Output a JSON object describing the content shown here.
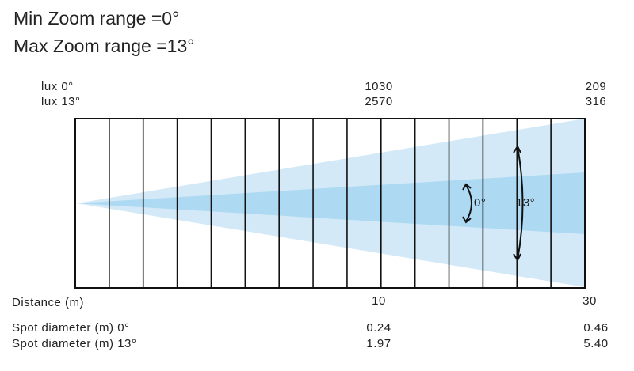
{
  "header": {
    "min_zoom": "Min Zoom range =0°",
    "max_zoom": "Max Zoom range =13°"
  },
  "lux": [
    {
      "label": "lux 0°",
      "values": [
        "1030",
        "209"
      ]
    },
    {
      "label": "lux 13°",
      "values": [
        "2570",
        "316"
      ]
    }
  ],
  "beam": {
    "inner_label": "0°",
    "outer_label": "13°"
  },
  "distance": {
    "label": "Distance (m)",
    "values": [
      "10",
      "30"
    ]
  },
  "spot": [
    {
      "label": "Spot diameter (m) 0°",
      "values": [
        "0.24",
        "0.46"
      ]
    },
    {
      "label": "Spot diameter (m) 13°",
      "values": [
        "1.97",
        "5.40"
      ]
    }
  ]
}
